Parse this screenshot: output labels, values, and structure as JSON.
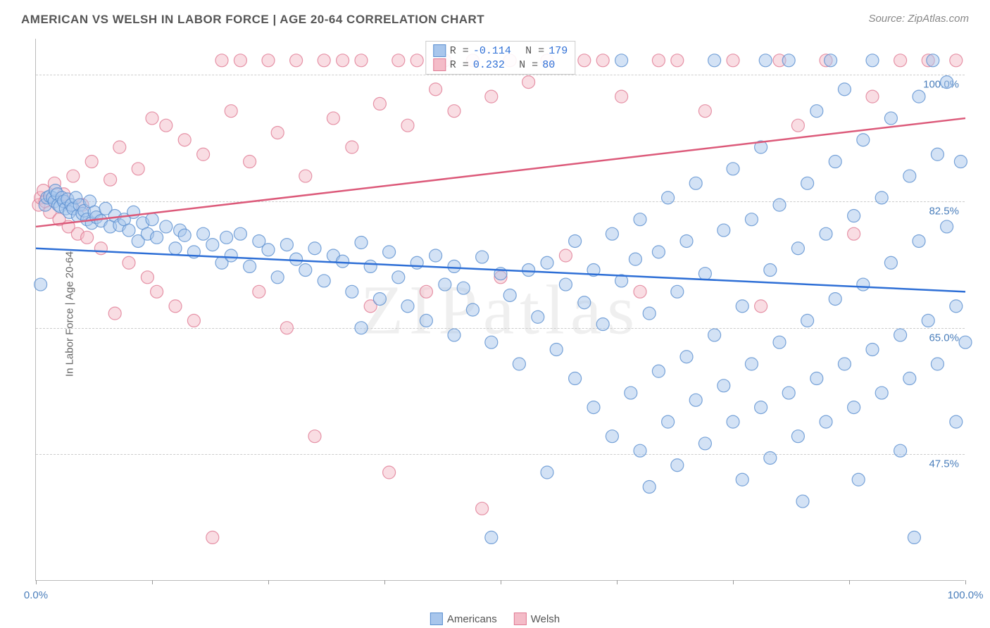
{
  "title": "AMERICAN VS WELSH IN LABOR FORCE | AGE 20-64 CORRELATION CHART",
  "source": "Source: ZipAtlas.com",
  "ylabel": "In Labor Force | Age 20-64",
  "watermark": "ZIPatlas",
  "chart": {
    "type": "scatter",
    "xlim": [
      0,
      100
    ],
    "ylim": [
      30,
      105
    ],
    "x_ticks": [
      0,
      12.5,
      25,
      37.5,
      50,
      62.5,
      75,
      87.5,
      100
    ],
    "x_tick_labels": {
      "0": "0.0%",
      "100": "100.0%"
    },
    "y_gridlines": [
      47.5,
      65.0,
      82.5,
      100.0
    ],
    "y_tick_labels": [
      "47.5%",
      "65.0%",
      "82.5%",
      "100.0%"
    ],
    "background_color": "#ffffff",
    "grid_color": "#cccccc",
    "axis_color": "#bbbbbb",
    "marker_radius": 9,
    "marker_opacity": 0.5,
    "series": [
      {
        "name": "Americans",
        "color_fill": "#a8c6ec",
        "color_stroke": "#5a8fd0",
        "trend_color": "#2e6fd6",
        "trend_width": 2.5,
        "trend": {
          "y_at_x0": 76.0,
          "y_at_x100": 70.0
        },
        "R": "-0.114",
        "N": "179",
        "points": [
          [
            0.5,
            71
          ],
          [
            1,
            82
          ],
          [
            1.2,
            83
          ],
          [
            1.5,
            83.2
          ],
          [
            1.8,
            83
          ],
          [
            2,
            82.5
          ],
          [
            2.1,
            84
          ],
          [
            2.3,
            83.5
          ],
          [
            2.4,
            82
          ],
          [
            2.6,
            81.8
          ],
          [
            2.8,
            83
          ],
          [
            3,
            82.5
          ],
          [
            3.2,
            81.5
          ],
          [
            3.4,
            82.8
          ],
          [
            3.6,
            81
          ],
          [
            3.8,
            82
          ],
          [
            4,
            81.5
          ],
          [
            4.3,
            83
          ],
          [
            4.5,
            80.5
          ],
          [
            4.7,
            82
          ],
          [
            5,
            80.8
          ],
          [
            5.2,
            81.2
          ],
          [
            5.5,
            80
          ],
          [
            5.8,
            82.5
          ],
          [
            6,
            79.5
          ],
          [
            6.3,
            81
          ],
          [
            6.5,
            80.3
          ],
          [
            7,
            79.8
          ],
          [
            7.5,
            81.5
          ],
          [
            8,
            79
          ],
          [
            8.5,
            80.5
          ],
          [
            9,
            79.2
          ],
          [
            9.5,
            80
          ],
          [
            10,
            78.5
          ],
          [
            10.5,
            81
          ],
          [
            11,
            77
          ],
          [
            11.5,
            79.5
          ],
          [
            12,
            78
          ],
          [
            12.5,
            80
          ],
          [
            13,
            77.5
          ],
          [
            14,
            79
          ],
          [
            15,
            76
          ],
          [
            15.5,
            78.5
          ],
          [
            16,
            77.8
          ],
          [
            17,
            75.5
          ],
          [
            18,
            78
          ],
          [
            19,
            76.5
          ],
          [
            20,
            74
          ],
          [
            20.5,
            77.5
          ],
          [
            21,
            75
          ],
          [
            22,
            78
          ],
          [
            23,
            73.5
          ],
          [
            24,
            77
          ],
          [
            25,
            75.8
          ],
          [
            26,
            72
          ],
          [
            27,
            76.5
          ],
          [
            28,
            74.5
          ],
          [
            29,
            73
          ],
          [
            30,
            76
          ],
          [
            31,
            71.5
          ],
          [
            32,
            75
          ],
          [
            33,
            74.2
          ],
          [
            34,
            70
          ],
          [
            35,
            76.8
          ],
          [
            35,
            65
          ],
          [
            36,
            73.5
          ],
          [
            37,
            69
          ],
          [
            38,
            75.5
          ],
          [
            39,
            72
          ],
          [
            40,
            68
          ],
          [
            41,
            74
          ],
          [
            42,
            66
          ],
          [
            43,
            75
          ],
          [
            44,
            71
          ],
          [
            45,
            64
          ],
          [
            45,
            73.5
          ],
          [
            46,
            70.5
          ],
          [
            47,
            67.5
          ],
          [
            48,
            74.8
          ],
          [
            49,
            63
          ],
          [
            49,
            36
          ],
          [
            50,
            72.5
          ],
          [
            51,
            69.5
          ],
          [
            52,
            60
          ],
          [
            53,
            73
          ],
          [
            54,
            66.5
          ],
          [
            55,
            45
          ],
          [
            55,
            74
          ],
          [
            56,
            62
          ],
          [
            57,
            71
          ],
          [
            58,
            58
          ],
          [
            58,
            77
          ],
          [
            59,
            68.5
          ],
          [
            60,
            54
          ],
          [
            60,
            73
          ],
          [
            61,
            65.5
          ],
          [
            62,
            50
          ],
          [
            62,
            78
          ],
          [
            63,
            71.5
          ],
          [
            63,
            102
          ],
          [
            64,
            56
          ],
          [
            64.5,
            74.5
          ],
          [
            65,
            48
          ],
          [
            65,
            80
          ],
          [
            66,
            67
          ],
          [
            66,
            43
          ],
          [
            67,
            75.5
          ],
          [
            67,
            59
          ],
          [
            68,
            52
          ],
          [
            68,
            83
          ],
          [
            69,
            70
          ],
          [
            69,
            46
          ],
          [
            70,
            77
          ],
          [
            70,
            61
          ],
          [
            71,
            55
          ],
          [
            71,
            85
          ],
          [
            72,
            72.5
          ],
          [
            72,
            49
          ],
          [
            73,
            64
          ],
          [
            73,
            102
          ],
          [
            74,
            78.5
          ],
          [
            74,
            57
          ],
          [
            75,
            52
          ],
          [
            75,
            87
          ],
          [
            76,
            68
          ],
          [
            76,
            44
          ],
          [
            77,
            80
          ],
          [
            77,
            60
          ],
          [
            78,
            54
          ],
          [
            78,
            90
          ],
          [
            78.5,
            102
          ],
          [
            79,
            73
          ],
          [
            79,
            47
          ],
          [
            80,
            82
          ],
          [
            80,
            63
          ],
          [
            81,
            56
          ],
          [
            81,
            102
          ],
          [
            82,
            76
          ],
          [
            82,
            50
          ],
          [
            82.5,
            41
          ],
          [
            83,
            85
          ],
          [
            83,
            66
          ],
          [
            84,
            58
          ],
          [
            84,
            95
          ],
          [
            85,
            78
          ],
          [
            85,
            52
          ],
          [
            85.5,
            102
          ],
          [
            86,
            88
          ],
          [
            86,
            69
          ],
          [
            87,
            60
          ],
          [
            87,
            98
          ],
          [
            88,
            80.5
          ],
          [
            88,
            54
          ],
          [
            88.5,
            44
          ],
          [
            89,
            91
          ],
          [
            89,
            71
          ],
          [
            90,
            62
          ],
          [
            90,
            102
          ],
          [
            91,
            83
          ],
          [
            91,
            56
          ],
          [
            92,
            94
          ],
          [
            92,
            74
          ],
          [
            93,
            64
          ],
          [
            93,
            48
          ],
          [
            94,
            86
          ],
          [
            94,
            58
          ],
          [
            94.5,
            36
          ],
          [
            95,
            97
          ],
          [
            95,
            77
          ],
          [
            96,
            66
          ],
          [
            96.5,
            102
          ],
          [
            97,
            89
          ],
          [
            97,
            60
          ],
          [
            98,
            99
          ],
          [
            98,
            79
          ],
          [
            99,
            68
          ],
          [
            99,
            52
          ],
          [
            99.5,
            88
          ],
          [
            100,
            63
          ]
        ]
      },
      {
        "name": "Welsh",
        "color_fill": "#f4bcc8",
        "color_stroke": "#e07b94",
        "trend_color": "#dc5a7a",
        "trend_width": 2.5,
        "trend": {
          "y_at_x0": 79.0,
          "y_at_x100": 94.0
        },
        "R": "0.232",
        "N": "80",
        "points": [
          [
            0.3,
            82
          ],
          [
            0.5,
            83
          ],
          [
            0.8,
            84
          ],
          [
            1,
            82.5
          ],
          [
            1.5,
            81
          ],
          [
            2,
            85
          ],
          [
            2.5,
            80
          ],
          [
            3,
            83.5
          ],
          [
            3.5,
            79
          ],
          [
            4,
            86
          ],
          [
            4.5,
            78
          ],
          [
            5,
            82
          ],
          [
            5.5,
            77.5
          ],
          [
            6,
            88
          ],
          [
            7,
            76
          ],
          [
            8,
            85.5
          ],
          [
            8.5,
            67
          ],
          [
            9,
            90
          ],
          [
            10,
            74
          ],
          [
            11,
            87
          ],
          [
            12,
            72
          ],
          [
            12.5,
            94
          ],
          [
            13,
            70
          ],
          [
            14,
            93
          ],
          [
            15,
            68
          ],
          [
            16,
            91
          ],
          [
            17,
            66
          ],
          [
            18,
            89
          ],
          [
            19,
            36
          ],
          [
            20,
            102
          ],
          [
            21,
            95
          ],
          [
            22,
            102
          ],
          [
            23,
            88
          ],
          [
            24,
            70
          ],
          [
            25,
            102
          ],
          [
            26,
            92
          ],
          [
            27,
            65
          ],
          [
            28,
            102
          ],
          [
            29,
            86
          ],
          [
            30,
            50
          ],
          [
            31,
            102
          ],
          [
            32,
            94
          ],
          [
            33,
            102
          ],
          [
            34,
            90
          ],
          [
            35,
            102
          ],
          [
            36,
            68
          ],
          [
            37,
            96
          ],
          [
            38,
            45
          ],
          [
            39,
            102
          ],
          [
            40,
            93
          ],
          [
            41,
            102
          ],
          [
            42,
            70
          ],
          [
            43,
            98
          ],
          [
            44,
            102
          ],
          [
            45,
            95
          ],
          [
            47,
            102
          ],
          [
            48,
            40
          ],
          [
            49,
            97
          ],
          [
            50,
            72
          ],
          [
            51,
            102
          ],
          [
            53,
            99
          ],
          [
            55,
            102
          ],
          [
            57,
            75
          ],
          [
            59,
            102
          ],
          [
            61,
            102
          ],
          [
            63,
            97
          ],
          [
            65,
            70
          ],
          [
            67,
            102
          ],
          [
            69,
            102
          ],
          [
            72,
            95
          ],
          [
            75,
            102
          ],
          [
            78,
            68
          ],
          [
            80,
            102
          ],
          [
            82,
            93
          ],
          [
            85,
            102
          ],
          [
            88,
            78
          ],
          [
            90,
            97
          ],
          [
            93,
            102
          ],
          [
            96,
            102
          ],
          [
            99,
            102
          ]
        ]
      }
    ],
    "legend_bottom": [
      {
        "label": "Americans",
        "fill": "#a8c6ec",
        "stroke": "#5a8fd0"
      },
      {
        "label": "Welsh",
        "fill": "#f4bcc8",
        "stroke": "#e07b94"
      }
    ]
  }
}
